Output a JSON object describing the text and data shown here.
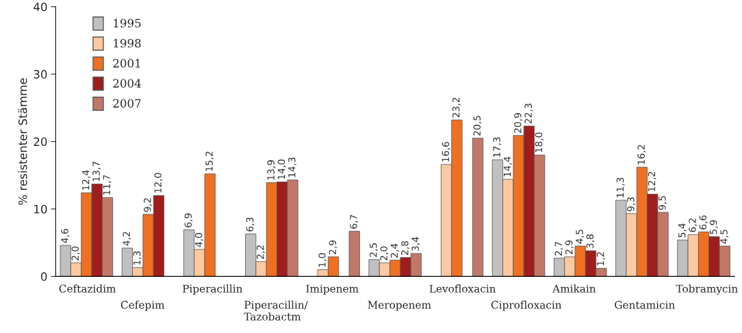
{
  "chart_data": {
    "type": "bar",
    "ylabel": "% resistenter Stämme",
    "categories": [
      "Ceftazidim",
      "Cefepim",
      "Piperacillin",
      "Piperacillin/\nTazobactm",
      "Imipenem",
      "Meropenem",
      "Levofloxacin",
      "Ciprofloxacin",
      "Amikain",
      "Gentamicin",
      "Tobramycin"
    ],
    "series": [
      {
        "name": "1995",
        "color": "#c0c0c0",
        "values": [
          4.6,
          4.2,
          6.9,
          6.3,
          null,
          2.5,
          null,
          17.3,
          2.7,
          11.3,
          5.4
        ],
        "value_labels": [
          "4,6",
          "4,2",
          "6,9",
          "6,3",
          null,
          "2,5",
          null,
          "17,3",
          "2,7",
          "11,3",
          "5,4"
        ]
      },
      {
        "name": "1998",
        "color": "#fdc9a0",
        "values": [
          2.0,
          1.3,
          4.0,
          2.2,
          1.0,
          2.0,
          16.6,
          14.4,
          2.9,
          9.3,
          6.2
        ],
        "value_labels": [
          "2,0",
          "1,3",
          "4,0",
          "2,2",
          "1,0",
          "2,0",
          "16,6",
          "14,4",
          "2,9",
          "9,3",
          "6,2"
        ]
      },
      {
        "name": "2001",
        "color": "#f07022",
        "values": [
          12.4,
          9.2,
          15.2,
          13.9,
          2.9,
          2.4,
          23.2,
          20.9,
          4.5,
          16.2,
          6.6
        ],
        "value_labels": [
          "12,4",
          "9,2",
          "15,2",
          "13,9",
          "2,9",
          "2,4",
          "23,2",
          "20,9",
          "4,5",
          "16,2",
          "6,6"
        ]
      },
      {
        "name": "2004",
        "color": "#a01d1d",
        "values": [
          13.7,
          12.0,
          null,
          14.0,
          null,
          2.8,
          null,
          22.3,
          3.8,
          12.2,
          5.9
        ],
        "value_labels": [
          "13,7",
          "12,0",
          null,
          "14,0",
          null,
          "2,8",
          null,
          "22,3",
          "3,8",
          "12,2",
          "5,9"
        ]
      },
      {
        "name": "2007",
        "color": "#c27868",
        "values": [
          11.7,
          null,
          null,
          14.3,
          6.7,
          3.4,
          20.5,
          18.0,
          1.2,
          9.5,
          4.5
        ],
        "value_labels": [
          "11,7",
          null,
          null,
          "14,3",
          "6,7",
          "3,4",
          "20,5",
          "18,0",
          "1,2",
          "9,5",
          "4,5"
        ]
      }
    ],
    "ylim": [
      0,
      40
    ],
    "yticks": [
      0,
      10,
      20,
      30,
      40
    ],
    "grid": false,
    "legend": "top left"
  }
}
